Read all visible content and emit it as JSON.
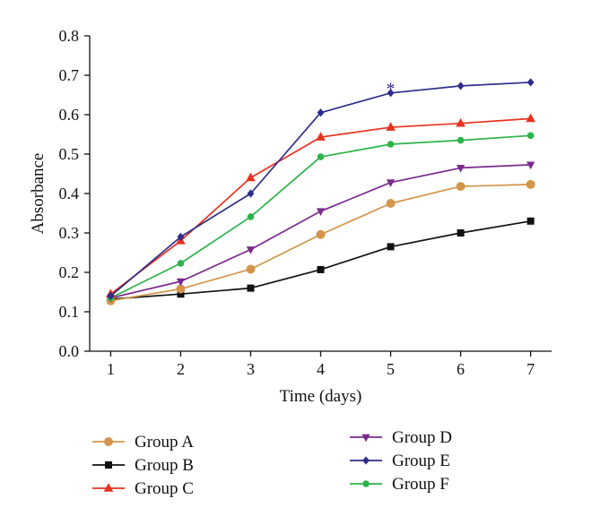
{
  "chart_data": {
    "type": "line",
    "xlabel": "Time (days)",
    "ylabel": "Absorbance",
    "x": [
      1,
      2,
      3,
      4,
      5,
      6,
      7
    ],
    "xlim": [
      0.7,
      7.3
    ],
    "ylim": [
      0,
      0.8
    ],
    "yticks": [
      "0.0",
      "0.1",
      "0.2",
      "0.3",
      "0.4",
      "0.5",
      "0.6",
      "0.7",
      "0.8"
    ],
    "xticks": [
      "1",
      "2",
      "3",
      "4",
      "5",
      "6",
      "7"
    ],
    "grid": false,
    "legend_position": "bottom",
    "series": [
      {
        "name": "Group A",
        "color": "#d4954a",
        "marker": "circle",
        "values": [
          0.128,
          0.158,
          0.208,
          0.296,
          0.375,
          0.418,
          0.423
        ]
      },
      {
        "name": "Group B",
        "color": "#111111",
        "marker": "square",
        "values": [
          0.132,
          0.145,
          0.16,
          0.207,
          0.265,
          0.3,
          0.33
        ]
      },
      {
        "name": "Group C",
        "color": "#e8321e",
        "marker": "triangle-up",
        "values": [
          0.145,
          0.28,
          0.44,
          0.543,
          0.568,
          0.578,
          0.59
        ]
      },
      {
        "name": "Group D",
        "color": "#7b2a8e",
        "marker": "triangle-down",
        "values": [
          0.135,
          0.177,
          0.258,
          0.355,
          0.428,
          0.465,
          0.473
        ]
      },
      {
        "name": "Group E",
        "color": "#2e2d8c",
        "marker": "diamond",
        "values": [
          0.14,
          0.29,
          0.4,
          0.605,
          0.655,
          0.673,
          0.682
        ]
      },
      {
        "name": "Group F",
        "color": "#2db34a",
        "marker": "circle-small",
        "values": [
          0.135,
          0.223,
          0.341,
          0.493,
          0.525,
          0.535,
          0.547
        ]
      }
    ],
    "annotations": [
      {
        "text": "*",
        "x": 5,
        "y": 0.665,
        "color": "#2e2d8c"
      }
    ]
  }
}
